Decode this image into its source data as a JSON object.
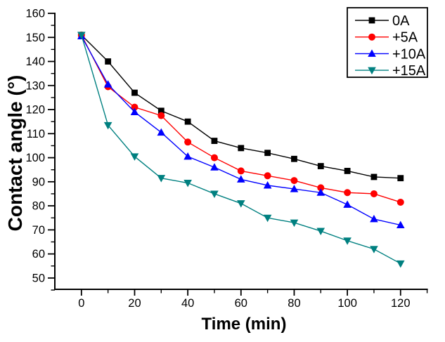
{
  "figure": {
    "background": "#ffffff"
  },
  "chart_data": {
    "type": "line",
    "title": "",
    "xlabel": "Time (min)",
    "ylabel": "Contact angle (°)",
    "x": [
      0,
      10,
      20,
      30,
      40,
      50,
      60,
      70,
      80,
      90,
      100,
      110,
      120
    ],
    "series": [
      {
        "name": "0A",
        "color": "#000000",
        "marker": "square",
        "values": [
          151,
          140,
          127,
          119.5,
          115,
          107,
          104,
          102,
          99.5,
          96.5,
          94.5,
          92,
          91.5
        ]
      },
      {
        "name": "+5A",
        "color": "#ff0000",
        "marker": "circle",
        "values": [
          151,
          129.5,
          121,
          117.5,
          106.5,
          100,
          94.5,
          92.5,
          90.5,
          87.5,
          85.5,
          85,
          81.5
        ]
      },
      {
        "name": "+10A",
        "color": "#0000ff",
        "marker": "triangle-up",
        "values": [
          150.5,
          130.5,
          119,
          110.5,
          100.5,
          96,
          91,
          88.5,
          87,
          85.5,
          80.5,
          74.5,
          72
        ]
      },
      {
        "name": "+15A",
        "color": "#008080",
        "marker": "triangle-down",
        "values": [
          151,
          113.5,
          100.5,
          91.5,
          89.5,
          85,
          81,
          75,
          73,
          69.5,
          65.5,
          62,
          56
        ]
      }
    ],
    "xlim": [
      -10,
      130
    ],
    "ylim": [
      45,
      160
    ],
    "x_ticks": [
      0,
      20,
      40,
      60,
      80,
      100,
      120
    ],
    "x_minor_ticks": [
      10,
      30,
      50,
      70,
      90,
      110,
      130
    ],
    "y_ticks": [
      50,
      60,
      70,
      80,
      90,
      100,
      110,
      120,
      130,
      140,
      150,
      160
    ],
    "y_minor_ticks": [
      45,
      55,
      65,
      75,
      85,
      95,
      105,
      115,
      125,
      135,
      145,
      155
    ],
    "grid": false,
    "legend": {
      "position": "top-right",
      "border": true,
      "labels": [
        "0A",
        "+5A",
        "+10A",
        "+15A"
      ]
    }
  }
}
